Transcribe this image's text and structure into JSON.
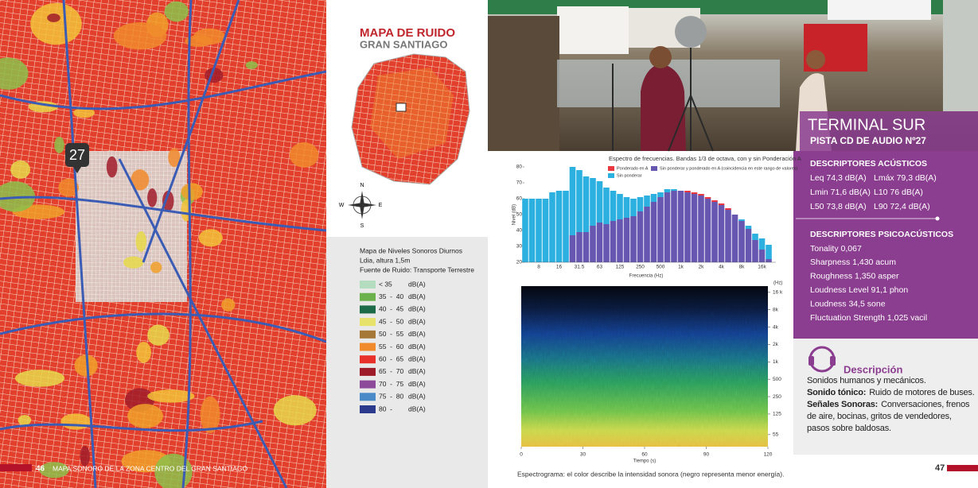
{
  "left_page": {
    "map_marker": "27",
    "page_number": "46",
    "running_title": "MAPA SONORO DE LA ZONA CENTRO DEL GRAN SANTIAGO"
  },
  "map_panel": {
    "title": "MAPA DE RUIDO",
    "subtitle": "GRAN SANTIAGO",
    "compass": {
      "n": "N",
      "s": "S",
      "e": "E",
      "w": "W"
    }
  },
  "legend": {
    "lines": [
      "Mapa de Niveles Sonoros Diurnos",
      "Ldia, altura 1,5m",
      "Fuente de Ruido: Transporte Terrestre"
    ],
    "unit": "dB(A)",
    "items": [
      {
        "label": "< 35",
        "color": "#b4dcbf"
      },
      {
        "label": "35  -  40",
        "color": "#6cb24c"
      },
      {
        "label": "40  -  45",
        "color": "#1d6a46"
      },
      {
        "label": "45  -  50",
        "color": "#e6e26a"
      },
      {
        "label": "50  -  55",
        "color": "#a67838"
      },
      {
        "label": "55  -  60",
        "color": "#f08a2c"
      },
      {
        "label": "60  -  65",
        "color": "#e8312a"
      },
      {
        "label": "65  -  70",
        "color": "#9e1c2a"
      },
      {
        "label": "70  -  75",
        "color": "#8e4a9a"
      },
      {
        "label": "75  -  80",
        "color": "#4a8ac8"
      },
      {
        "label": "80  -",
        "color": "#2b3a8c"
      }
    ]
  },
  "chart_data": {
    "type": "bar",
    "title": "Espectro de frecuencias. Bandas 1/3 de octava, con y sin Ponderación A",
    "x_label": "Frecuencia (Hz)",
    "y_label": "Nivel (dB)",
    "categories": [
      null,
      null,
      "8",
      null,
      null,
      "16",
      null,
      null,
      "31.5",
      null,
      null,
      "63",
      null,
      null,
      "125",
      null,
      null,
      "250",
      null,
      null,
      "500",
      null,
      null,
      "1k",
      null,
      null,
      "2k",
      null,
      null,
      "4k",
      null,
      null,
      "8k",
      null,
      null,
      "16k",
      null
    ],
    "series": [
      {
        "name": "Ponderado en A",
        "color": "#e8373f",
        "values": [
          null,
          null,
          null,
          null,
          null,
          null,
          null,
          37,
          39,
          39,
          43,
          45,
          44,
          46,
          47,
          48,
          49,
          52,
          55,
          58,
          61,
          64,
          65,
          65,
          65,
          64,
          63,
          61,
          59,
          57,
          54,
          50,
          46,
          41,
          34,
          28,
          22
        ]
      },
      {
        "name": "Sin ponderar",
        "color": "#2cb0e0",
        "values": [
          60,
          60,
          60,
          60,
          64,
          65,
          65,
          82,
          78,
          74,
          73,
          71,
          67,
          65,
          63,
          61,
          60,
          61,
          62,
          63,
          64,
          66,
          66,
          65,
          64,
          63,
          62,
          60,
          58,
          56,
          53,
          50,
          47,
          43,
          38,
          35,
          31
        ]
      }
    ],
    "overlap_legend": {
      "label": "Sin ponderar y ponderado en A (coincidencia en este rango de valores)",
      "color": "#6757b0"
    },
    "ylim": [
      20,
      80
    ],
    "yticks": [
      20,
      30,
      40,
      50,
      60,
      70,
      80
    ]
  },
  "spectrogram": {
    "x_label": "Tiempo (s)",
    "y_unit": "(Hz)",
    "xlim": [
      0,
      120
    ],
    "xticks": [
      0,
      30,
      60,
      90,
      120
    ],
    "yscale": "log",
    "ylim": [
      34,
      20500
    ],
    "yticks": [
      {
        "value": 16000,
        "label": "16 k"
      },
      {
        "value": 8000,
        "label": "8k"
      },
      {
        "value": 4000,
        "label": "4k"
      },
      {
        "value": 2000,
        "label": "2k"
      },
      {
        "value": 1000,
        "label": "1k"
      },
      500,
      250,
      125,
      55
    ],
    "caption": "Espectrograma: el color describe la intensidad sonora (negro representa menor energía)."
  },
  "info": {
    "title": "TERMINAL SUR",
    "track": "PISTA CD DE AUDIO Nº27",
    "acoustic": {
      "heading": "DESCRIPTORES ACÚSTICOS",
      "items": [
        "Leq 74,3 dB(A)",
        "Lmáx 79,3 dB(A)",
        "Lmin 71,6 dB(A)",
        "L10 76 dB(A)",
        "L50 73,8 dB(A)",
        "L90 72,4 dB(A)"
      ]
    },
    "psychoacoustic": {
      "heading": "DESCRIPTORES PSICOACÚSTICOS",
      "items": [
        "Tonality 0,067",
        "Sharpness 1,430 acum",
        "Roughness 1,350 asper",
        "Loudness Level 91,1 phon",
        "Loudness 34,5 sone",
        "Fluctuation Strength 1,025 vacil"
      ]
    },
    "description": {
      "heading": "Descripción",
      "paragraphs": [
        {
          "text": "Sonidos humanos y mecánicos."
        },
        {
          "label": "Sonido tónico:",
          "text": "Ruido de motores de buses."
        },
        {
          "label": "Señales Sonoras:",
          "text": "Conversaciones, frenos de aire, bocinas, gritos de vendedores, pasos sobre baldosas."
        }
      ]
    }
  },
  "right_page": {
    "page_number": "47"
  }
}
